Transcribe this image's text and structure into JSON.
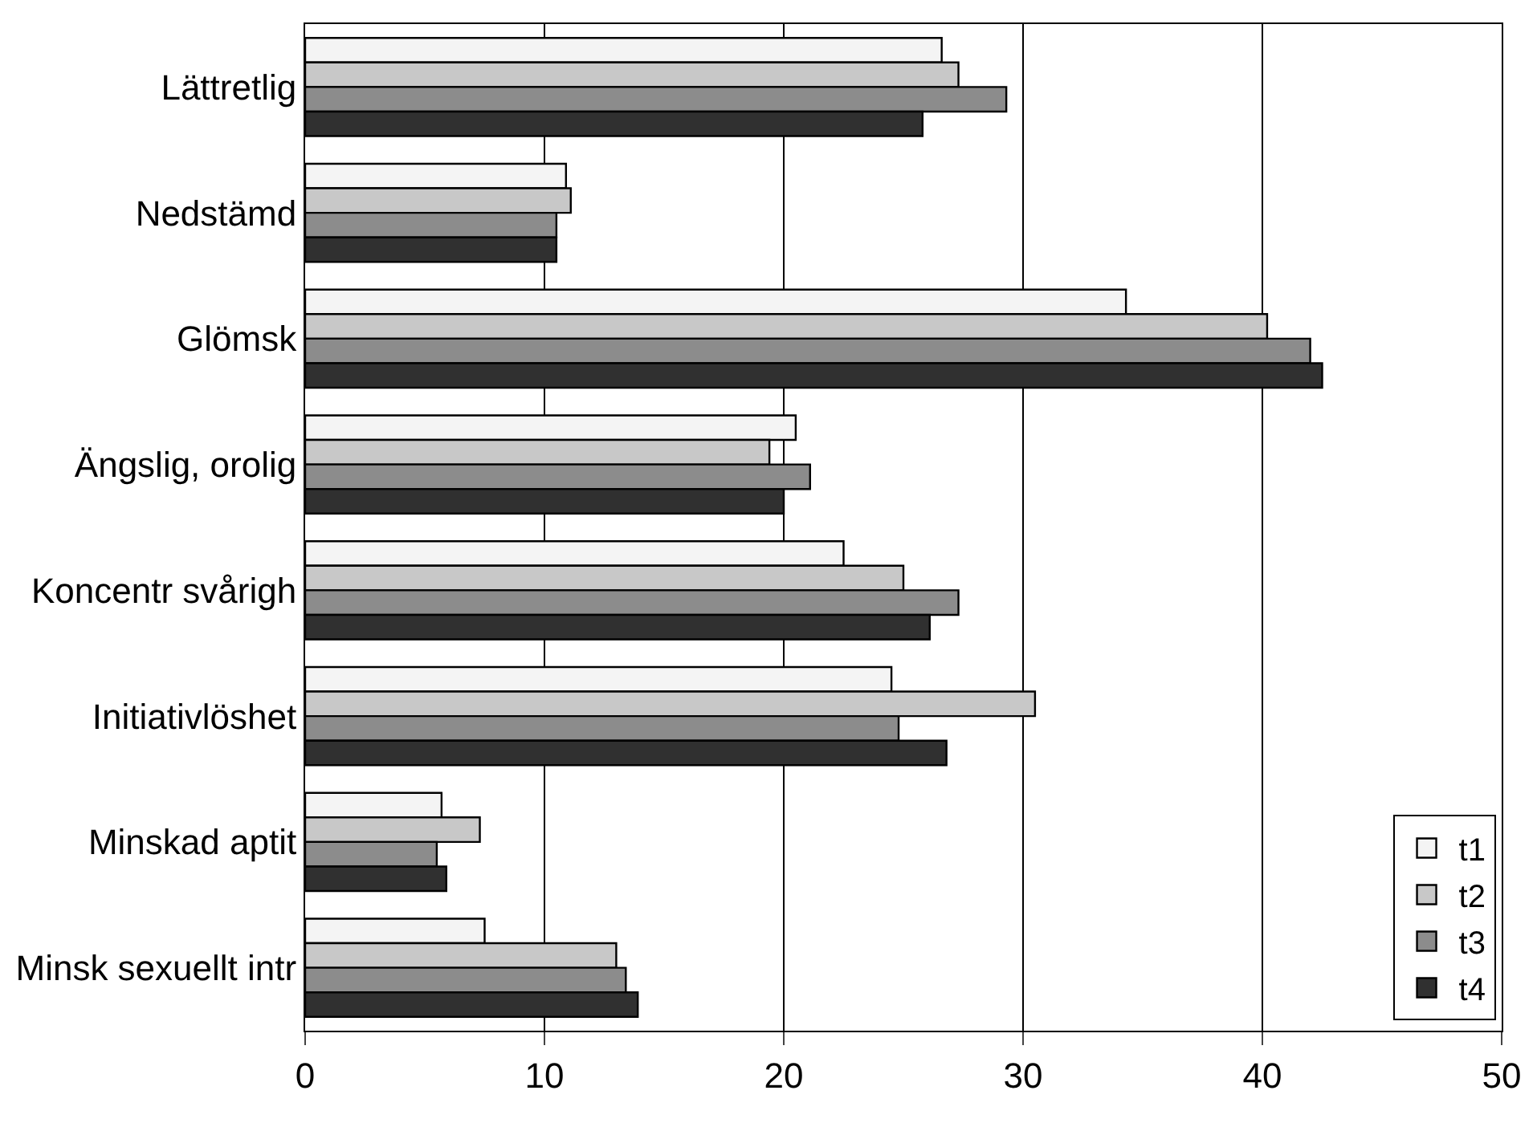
{
  "chart_data": {
    "type": "bar",
    "orientation": "horizontal",
    "categories": [
      "Lättretlig",
      "Nedstämd",
      "Glömsk",
      "Ängslig, orolig",
      "Koncentr svårigh",
      "Initiativlöshet",
      "Minskad aptit",
      "Minsk sexuellt intr"
    ],
    "series": [
      {
        "name": "t1",
        "color": "#f4f4f4",
        "values": [
          26.6,
          10.9,
          34.3,
          20.5,
          22.5,
          24.5,
          5.7,
          7.5
        ]
      },
      {
        "name": "t2",
        "color": "#c8c8c8",
        "values": [
          27.3,
          11.1,
          40.2,
          19.4,
          25.0,
          30.5,
          7.3,
          13.0
        ]
      },
      {
        "name": "t3",
        "color": "#8c8c8c",
        "values": [
          29.3,
          10.5,
          42.0,
          21.1,
          27.3,
          24.8,
          5.5,
          13.4
        ]
      },
      {
        "name": "t4",
        "color": "#303030",
        "values": [
          25.8,
          10.5,
          42.5,
          20.0,
          26.1,
          26.8,
          5.9,
          13.9
        ]
      }
    ],
    "xlim": [
      0,
      50
    ],
    "xticks": [
      0,
      10,
      20,
      30,
      40,
      50
    ],
    "grid": "x",
    "legend": "bottom right"
  }
}
